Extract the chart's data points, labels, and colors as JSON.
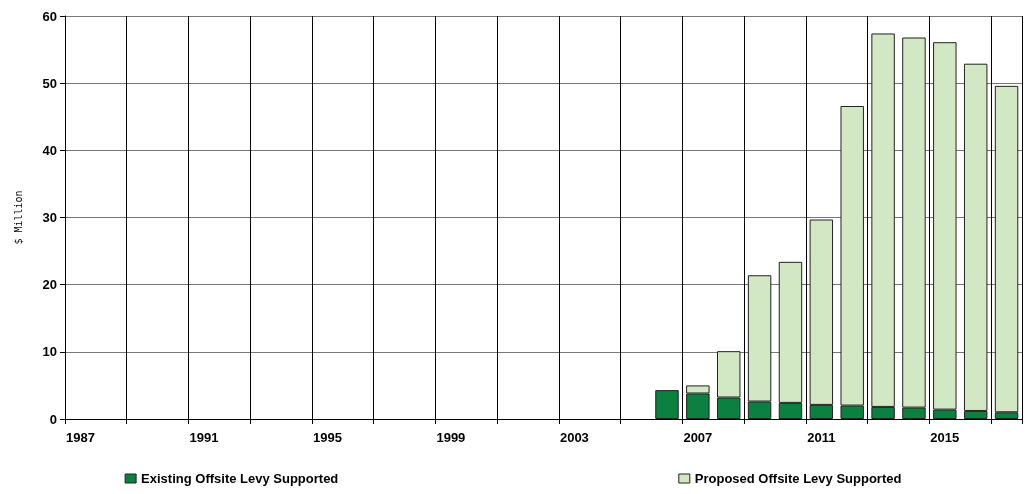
{
  "chart_data": {
    "type": "bar",
    "stacked": true,
    "ylabel": "$ Million",
    "categories": [
      "1987",
      null,
      null,
      null,
      "1991",
      null,
      null,
      null,
      "1995",
      null,
      null,
      null,
      "1999",
      null,
      null,
      null,
      "2003",
      null,
      null,
      null,
      "2007",
      null,
      null,
      null,
      "2011",
      null,
      null,
      null,
      "2015",
      null,
      null
    ],
    "series": [
      {
        "name": "Existing Offsite Levy Supported",
        "color": "#0b8040",
        "values": [
          null,
          null,
          null,
          null,
          null,
          null,
          null,
          null,
          null,
          null,
          null,
          null,
          null,
          null,
          null,
          null,
          null,
          null,
          null,
          4.3,
          3.8,
          3.2,
          2.6,
          2.4,
          2.1,
          2.0,
          1.8,
          1.7,
          1.4,
          1.2,
          1.0
        ]
      },
      {
        "name": "Proposed Offsite Levy Supported",
        "color": "#d2e8c5",
        "values": [
          null,
          null,
          null,
          null,
          null,
          null,
          null,
          null,
          null,
          null,
          null,
          null,
          null,
          null,
          null,
          null,
          null,
          null,
          null,
          null,
          1.2,
          6.9,
          18.8,
          21.0,
          27.6,
          44.6,
          55.6,
          55.1,
          54.7,
          51.7,
          48.6
        ]
      }
    ],
    "ylim": [
      0,
      60
    ],
    "yticks": [
      0,
      10,
      20,
      30,
      40,
      50,
      60
    ],
    "grid": true,
    "legend": "bottom"
  }
}
